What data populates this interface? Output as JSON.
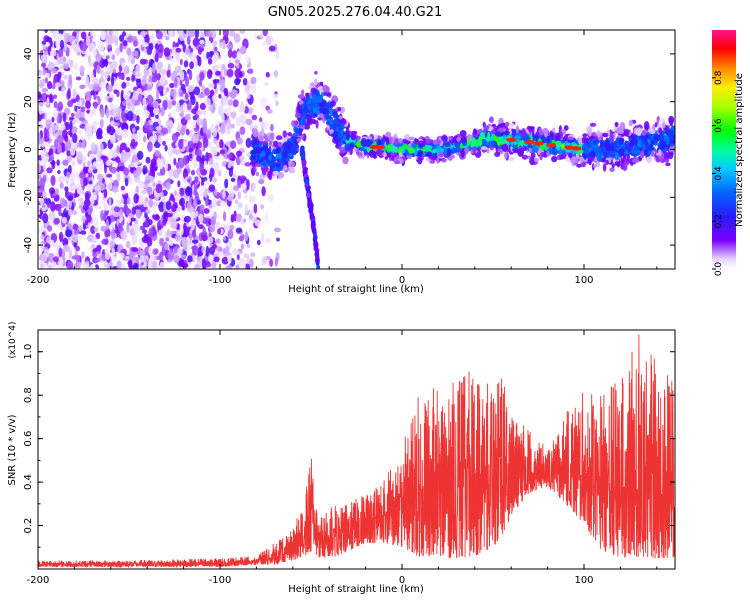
{
  "chart_data": [
    {
      "type": "heatmap",
      "title": "GN05.2025.276.04.40.G21",
      "xlabel": "Height of straight line (km)",
      "ylabel": "Frequency (Hz)",
      "xlim": [
        -200,
        150
      ],
      "ylim": [
        -50,
        50
      ],
      "x_ticks": [
        -200,
        -100,
        0,
        100
      ],
      "y_ticks": [
        -40,
        -20,
        0,
        20,
        40
      ],
      "colorbar": {
        "label": "Normalized spectral amplitude",
        "range": [
          0.0,
          1.0
        ],
        "ticks": [
          "0.0",
          "0.2",
          "0.4",
          "0.6",
          "0.8"
        ],
        "colormap": "rainbow (white-purple-blue-cyan-green-yellow-red-pink)"
      },
      "ridge": {
        "x": [
          -80,
          -70,
          -60,
          -55,
          -50,
          -45,
          -40,
          -35,
          -30,
          -25,
          -20,
          -10,
          0,
          10,
          20,
          30,
          40,
          45,
          50,
          60,
          70,
          80,
          90,
          100,
          110,
          120,
          130,
          140,
          150
        ],
        "y": [
          0,
          -5,
          0,
          15,
          18,
          20,
          15,
          8,
          4,
          2,
          1,
          1,
          0,
          0,
          0,
          1,
          3,
          5,
          4,
          4,
          3,
          2,
          1,
          0,
          0,
          1,
          2,
          3,
          5
        ]
      },
      "descending_track": {
        "x": [
          -55,
          -52,
          -49,
          -46
        ],
        "y": [
          0,
          -15,
          -30,
          -48
        ]
      }
    },
    {
      "type": "line",
      "xlabel": "Height of straight line (km)",
      "ylabel": "SNR (10 * v/v)",
      "y_scale_label": "(x10^4)",
      "xlim": [
        -200,
        150
      ],
      "ylim": [
        0,
        1.1
      ],
      "x_ticks": [
        -200,
        -100,
        0,
        100
      ],
      "y_ticks": [
        0.2,
        0.4,
        0.6,
        0.8,
        1.0
      ],
      "color": "#ee3333",
      "envelope": {
        "x": [
          -200,
          -150,
          -100,
          -80,
          -70,
          -60,
          -55,
          -50,
          -45,
          -40,
          -35,
          -30,
          -20,
          -10,
          0,
          5,
          10,
          15,
          20,
          25,
          30,
          40,
          50,
          55,
          60,
          70,
          80,
          90,
          100,
          110,
          120,
          130,
          140,
          150
        ],
        "upper": [
          0.04,
          0.04,
          0.05,
          0.06,
          0.12,
          0.18,
          0.3,
          0.52,
          0.3,
          0.28,
          0.3,
          0.3,
          0.35,
          0.42,
          0.55,
          0.72,
          0.82,
          0.85,
          0.82,
          0.8,
          0.9,
          0.92,
          0.85,
          0.93,
          0.7,
          0.65,
          0.55,
          0.72,
          0.82,
          0.85,
          0.88,
          1.1,
          0.95,
          0.9
        ],
        "lower": [
          0.01,
          0.01,
          0.01,
          0.02,
          0.02,
          0.04,
          0.05,
          0.08,
          0.05,
          0.05,
          0.06,
          0.08,
          0.12,
          0.12,
          0.1,
          0.08,
          0.05,
          0.06,
          0.06,
          0.05,
          0.05,
          0.06,
          0.1,
          0.15,
          0.25,
          0.35,
          0.38,
          0.3,
          0.2,
          0.08,
          0.05,
          0.05,
          0.05,
          0.05
        ]
      }
    }
  ]
}
